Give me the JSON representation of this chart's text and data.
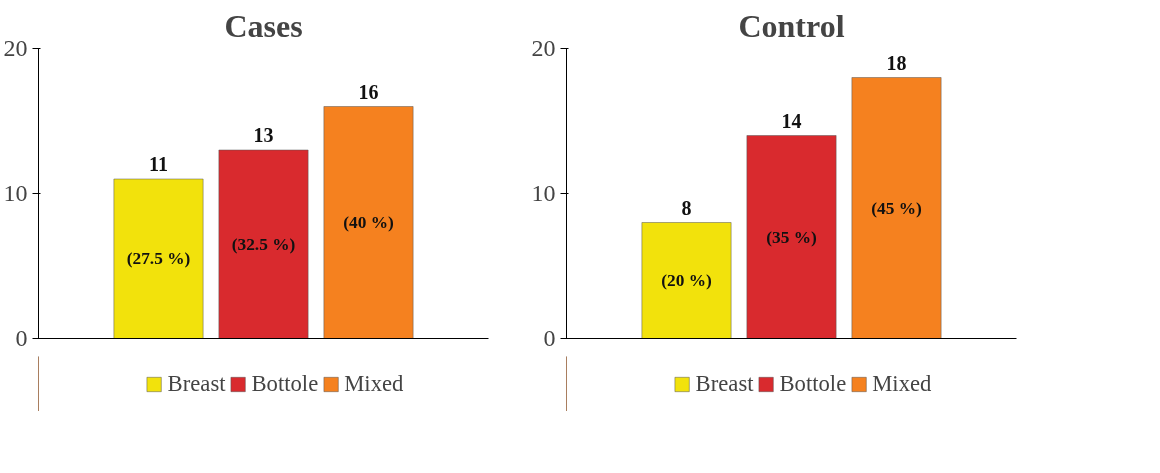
{
  "chart_data": [
    {
      "type": "bar",
      "title": "Cases",
      "categories": [
        null
      ],
      "series": [
        {
          "name": "Breast",
          "color": "#f2e20c",
          "values": [
            11
          ]
        },
        {
          "name": "Bottole",
          "color": "#d92a2e",
          "values": [
            13
          ]
        },
        {
          "name": "Mixed",
          "color": "#f5811f",
          "values": [
            16
          ]
        }
      ],
      "ylim": [
        0,
        20
      ],
      "yticks": [
        0,
        10,
        20
      ],
      "legend": "bottom",
      "data_labels": true,
      "tick_labels": "y",
      "annotations": [
        "(27.5 %)",
        "(32.5 %)",
        "(40 %)"
      ]
    },
    {
      "type": "bar",
      "title": "Control",
      "categories": [
        null
      ],
      "series": [
        {
          "name": "Breast",
          "color": "#f2e20c",
          "values": [
            8
          ]
        },
        {
          "name": "Bottole",
          "color": "#d92a2e",
          "values": [
            14
          ]
        },
        {
          "name": "Mixed",
          "color": "#f5811f",
          "values": [
            18
          ]
        }
      ],
      "ylim": [
        0,
        20
      ],
      "yticks": [
        0,
        10,
        20
      ],
      "legend": "bottom",
      "data_labels": true,
      "tick_labels": "y",
      "annotations": [
        "(20 %)",
        "(35 %)",
        "(45 %)"
      ]
    }
  ]
}
